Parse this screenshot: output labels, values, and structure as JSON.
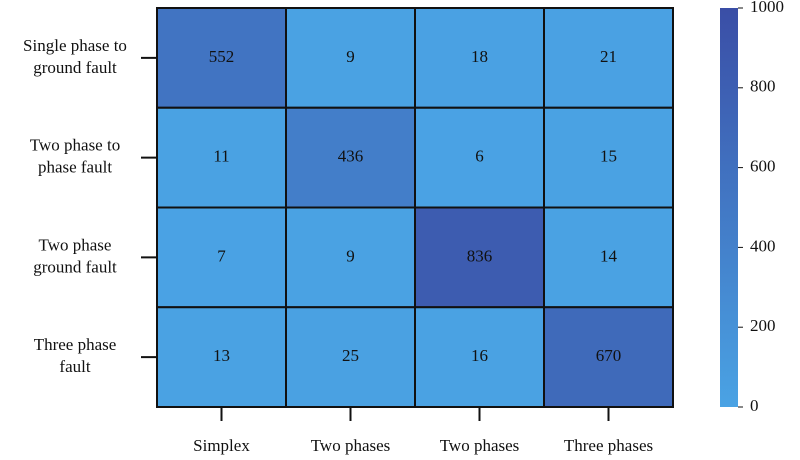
{
  "chart_data": {
    "type": "heatmap",
    "x_categories": [
      "Simplex",
      "Two phases",
      "Two phases",
      "Three phases"
    ],
    "y_categories": [
      [
        "Single phase to",
        "ground fault"
      ],
      [
        "Two phase to",
        "phase fault"
      ],
      [
        "Two phase",
        "ground fault"
      ],
      [
        "Three phase",
        "fault"
      ]
    ],
    "values": [
      [
        552,
        9,
        18,
        21
      ],
      [
        11,
        436,
        6,
        15
      ],
      [
        7,
        9,
        836,
        14
      ],
      [
        13,
        25,
        16,
        670
      ]
    ],
    "color_low": "#4aa3e4",
    "color_high": "#3a4ea6",
    "clim": [
      0,
      1000
    ],
    "cticks": [
      0,
      200,
      400,
      600,
      800,
      1000
    ]
  }
}
